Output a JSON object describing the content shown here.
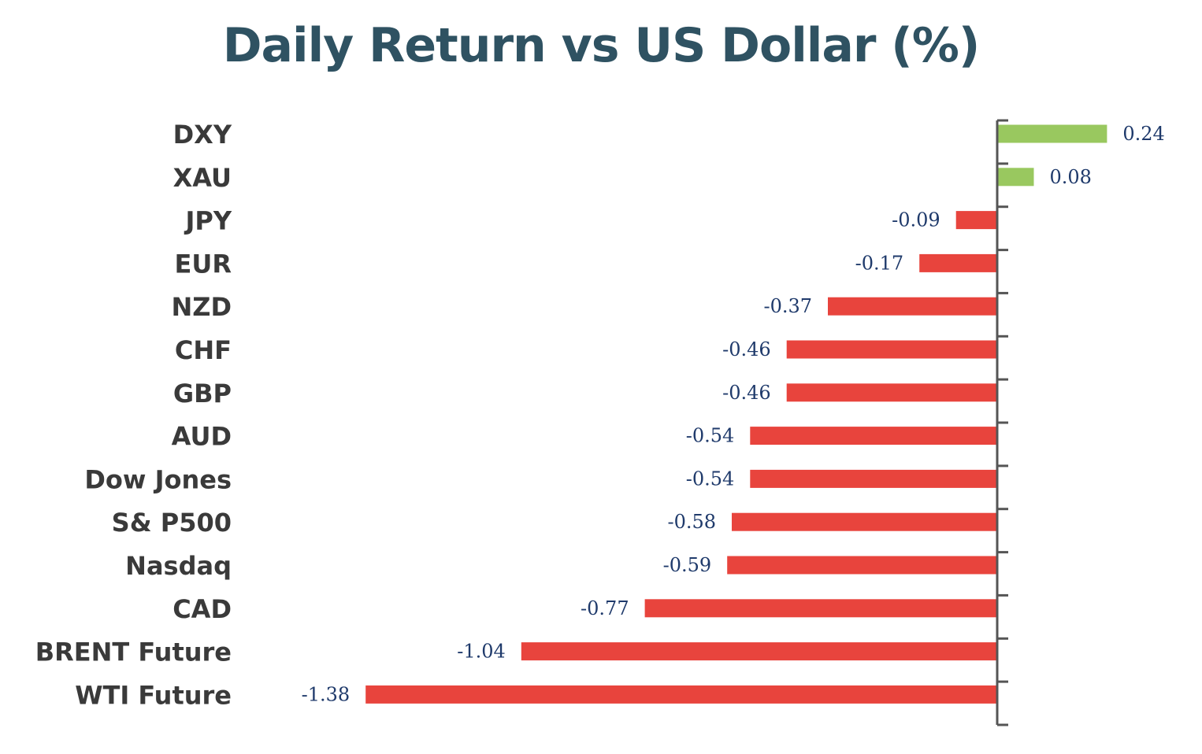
{
  "chart_data": {
    "type": "bar",
    "orientation": "horizontal",
    "title": "Daily Return vs US Dollar (%)",
    "categories": [
      "DXY",
      "XAU",
      "JPY",
      "EUR",
      "NZD",
      "CHF",
      "GBP",
      "AUD",
      "Dow Jones",
      "S& P500",
      "Nasdaq",
      "CAD",
      "BRENT Future",
      "WTI Future"
    ],
    "values": [
      0.24,
      0.08,
      -0.09,
      -0.17,
      -0.37,
      -0.46,
      -0.46,
      -0.54,
      -0.54,
      -0.58,
      -0.59,
      -0.77,
      -1.04,
      -1.38
    ],
    "value_labels": [
      "0.24",
      "0.08",
      "-0.09",
      "-0.17",
      "-0.37",
      "-0.46",
      "-0.46",
      "-0.54",
      "-0.54",
      "-0.58",
      "-0.59",
      "-0.77",
      "-1.04",
      "-1.38"
    ],
    "xlim": [
      -1.38,
      0.24
    ],
    "grid": false,
    "legend": "none",
    "colors": {
      "positive": "#99c85f",
      "negative": "#e8443d",
      "axis": "#555555",
      "title": "#2f5262",
      "category_label": "#3a3a3a",
      "value_label": "#1f3a6b"
    }
  }
}
